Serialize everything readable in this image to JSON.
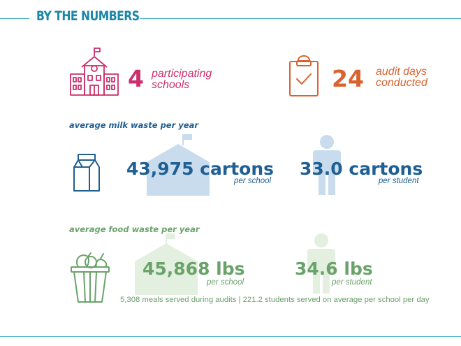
{
  "header": {
    "title": "BY THE NUMBERS"
  },
  "colors": {
    "accent_blue": "#1a86a8",
    "magenta": "#cc2f6c",
    "orange": "#d9632f",
    "navy": "#1f5f93",
    "light_blue": "#c8dced",
    "green": "#6aa36a",
    "light_green": "#e3efdf"
  },
  "stats_top": [
    {
      "icon": "school-icon",
      "number": "4",
      "label_line1": "participating",
      "label_line2": "schools"
    },
    {
      "icon": "clipboard-check-icon",
      "number": "24",
      "label_line1": "audit days",
      "label_line2": "conducted"
    }
  ],
  "milk": {
    "section_title": "average milk waste per year",
    "icon": "milk-carton-icon",
    "per_school": {
      "value": "43,975 cartons",
      "unit": "per school"
    },
    "per_student": {
      "value": "33.0 cartons",
      "unit": "per student"
    }
  },
  "food": {
    "section_title": "average food waste per year",
    "icon": "food-basket-icon",
    "per_school": {
      "value": "45,868 lbs",
      "unit": "per school"
    },
    "per_student": {
      "value": "34.6 lbs",
      "unit": "per student"
    },
    "footnote": "5,308 meals served during audits | 221.2 students served on average per school per day"
  }
}
